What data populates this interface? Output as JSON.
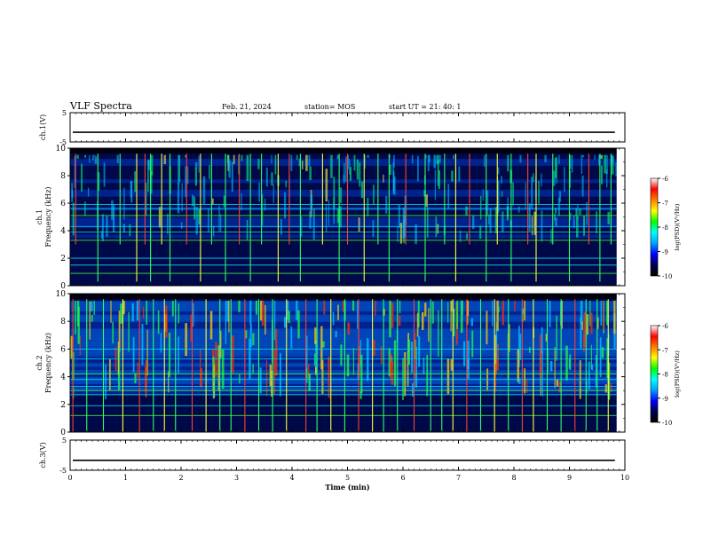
{
  "header": {
    "title": "VLF Spectra",
    "date": "Feb. 21, 2024",
    "station": "station= MOS",
    "start_ut": "start  UT  =   21: 40: 1"
  },
  "colors": {
    "background": "#ffffff",
    "axes": "#000000",
    "spectrogram_floor": "#000014",
    "colormap": [
      "#000000",
      "#00004a",
      "#0000ff",
      "#00a0ff",
      "#00ffff",
      "#00ff00",
      "#ffff00",
      "#ff7f00",
      "#ff0000",
      "#ffffff"
    ]
  },
  "chart_data": [
    {
      "type": "line",
      "panel": "ch1-waveform",
      "ylabel": "ch.1(V)",
      "ylim": [
        -5,
        5
      ],
      "y_ticks": [
        "5",
        "-5"
      ],
      "xlim": [
        0,
        10
      ],
      "trace_level": -1.7,
      "grid": false
    },
    {
      "type": "heatmap",
      "panel": "ch1-spectrogram",
      "ylabel_line1": "ch.1",
      "ylabel_line2": "Frequency (kHz)",
      "ylim": [
        0,
        10
      ],
      "y_ticks": [
        "0",
        "2",
        "4",
        "6",
        "8",
        "10"
      ],
      "xlim": [
        0,
        9.85
      ],
      "data_end_min": 9.85,
      "colorbar": {
        "label": "log(PSD)(V²/Hz)",
        "range": [
          -10,
          -6
        ],
        "ticks": [
          "-6",
          "-7",
          "-8",
          "-9",
          "-10"
        ]
      },
      "lines_khz": [
        0.9,
        1.5,
        2.0,
        3.3,
        3.9,
        4.3,
        5.1,
        5.6,
        5.9
      ],
      "sferic_minutes": [
        0.1,
        0.5,
        0.9,
        1.2,
        1.35,
        1.45,
        1.65,
        1.8,
        2.1,
        2.35,
        2.55,
        2.8,
        3.05,
        3.25,
        3.45,
        3.75,
        3.95,
        4.15,
        4.55,
        4.85,
        5.0,
        5.3,
        5.55,
        5.75,
        6.05,
        6.4,
        6.75,
        6.95,
        7.2,
        7.5,
        7.7,
        7.95,
        8.25,
        8.4,
        8.7,
        9.0,
        9.35,
        9.55,
        9.75
      ],
      "grid": false
    },
    {
      "type": "heatmap",
      "panel": "ch2-spectrogram",
      "ylabel_line1": "ch.2",
      "ylabel_line2": "Frequency (kHz)",
      "ylim": [
        0,
        10
      ],
      "y_ticks": [
        "0",
        "2",
        "4",
        "6",
        "8",
        "10"
      ],
      "xlim": [
        0,
        9.85
      ],
      "data_end_min": 9.85,
      "colorbar": {
        "label": "log(PSD)(V²/Hz)",
        "range": [
          -10,
          -6
        ],
        "ticks": [
          "-6",
          "-7",
          "-8",
          "-9",
          "-10"
        ]
      },
      "lines_khz": [
        1.2,
        1.9,
        2.7,
        3.0,
        3.3,
        3.8,
        4.2,
        5.3,
        6.0
      ],
      "sferic_minutes": [
        0.05,
        0.3,
        0.6,
        0.95,
        1.25,
        1.5,
        1.7,
        1.9,
        2.2,
        2.45,
        2.7,
        2.9,
        3.15,
        3.4,
        3.65,
        3.9,
        4.25,
        4.45,
        4.7,
        4.95,
        5.2,
        5.45,
        5.65,
        5.9,
        6.2,
        6.5,
        6.7,
        6.9,
        7.15,
        7.4,
        7.65,
        7.9,
        8.15,
        8.35,
        8.6,
        8.85,
        9.1,
        9.3,
        9.5,
        9.7
      ],
      "grid": false
    },
    {
      "type": "line",
      "panel": "ch3-waveform",
      "ylabel": "ch.3(V)",
      "ylim": [
        -5,
        5
      ],
      "y_ticks": [
        "5",
        "-5"
      ],
      "xlabel": "Time  (min)",
      "x_ticks": [
        "0",
        "1",
        "2",
        "3",
        "4",
        "5",
        "6",
        "7",
        "8",
        "9",
        "10"
      ],
      "xlim": [
        0,
        10
      ],
      "trace_level": -1.7,
      "grid": false
    }
  ]
}
